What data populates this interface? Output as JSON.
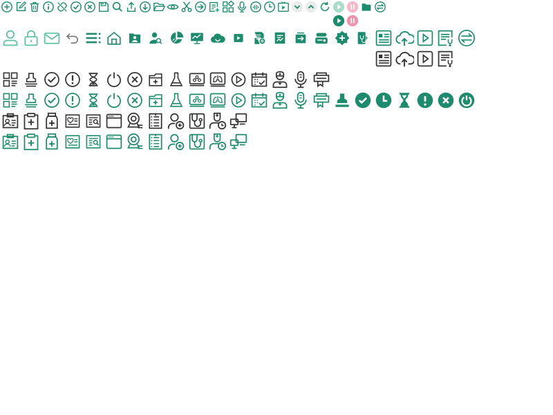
{
  "colors": {
    "primary": "#1e8a6e",
    "primary_light": "#5cc2a0",
    "dark": "#333333",
    "gray": "#777777",
    "pink": "#f4a9bd",
    "pale_green": "#9fd6c4",
    "chip_bg": "#e8ecea"
  },
  "toolbar_icons": [
    "add-circle-icon",
    "edit-icon",
    "trash-icon",
    "info-icon",
    "unlink-icon",
    "check-circle-icon",
    "close-circle-icon",
    "save-icon",
    "search-icon",
    "upload-icon",
    "download-circle-icon",
    "folder-open-icon",
    "view-icon",
    "cut-icon",
    "arrow-right-circle-icon",
    "add-list-icon",
    "apps-icon",
    "microphone-icon",
    "audio-wave-icon",
    "clock-icon",
    "tv-play-icon",
    "chevron-down-icon",
    "chevron-up-icon",
    "refresh-icon",
    "play-icon",
    "pause-icon",
    "folder-icon",
    "swap-icon"
  ],
  "toolbar_icons_2": [
    "play-icon",
    "pause-icon"
  ],
  "large_icons": [
    "user-icon",
    "lock-icon",
    "mail-icon",
    "undo-icon",
    "list-icon",
    "home-icon",
    "contact-folder-icon",
    "user-search-icon",
    "pie-chart-icon",
    "monitor-chart-icon",
    "cloud-icon",
    "video-play-icon",
    "doc-settings-icon",
    "id-card-icon",
    "exit-box-icon",
    "server-icon",
    "medical-cross-icon",
    "phone-stethoscope-icon",
    "news-icon",
    "cloud-upload-icon",
    "play-square-icon",
    "doc-stethoscope-icon",
    "exchange-circle-icon"
  ],
  "large_icons_2": [
    "news-icon",
    "cloud-upload-icon",
    "play-square-icon",
    "doc-stethoscope-icon"
  ],
  "medical_icons": [
    "qrcode-icon",
    "stamp-icon",
    "check-circle-icon",
    "alert-circle-icon",
    "hourglass-icon",
    "power-icon",
    "close-circle-icon",
    "folder-add-icon",
    "flask-icon",
    "lab-machine-icon",
    "lung-scan-icon",
    "play-circle-icon",
    "calendar-check-icon",
    "nurse-icon",
    "microphone-icon",
    "printer-icon"
  ],
  "medical_icons_solid": [
    "stamp-solid-icon",
    "check-solid-icon",
    "clock-solid-icon",
    "hourglass-solid-icon",
    "alert-solid-icon",
    "close-solid-icon",
    "power-solid-icon"
  ],
  "record_icons": [
    "patient-card-icon",
    "clipboard-plus-icon",
    "medicine-bottle-icon",
    "health-record-icon",
    "report-search-icon",
    "browser-window-icon",
    "webcam-icon",
    "checklist-icon",
    "add-user-icon",
    "stethoscope-doc-icon",
    "doctor-clock-icon",
    "remote-desktop-icon"
  ]
}
